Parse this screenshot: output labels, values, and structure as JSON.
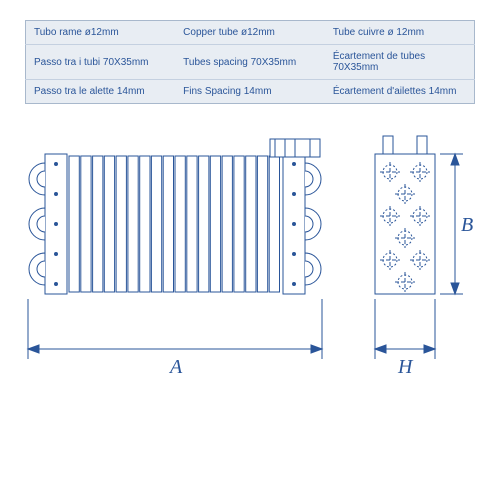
{
  "colors": {
    "table_bg": "#e8edf3",
    "table_border": "#a8b8cc",
    "row_border": "#c4d0e0",
    "text": "#2a5599",
    "drawing_stroke": "#2a5599",
    "drawing_fill": "#ffffff"
  },
  "spec_table": {
    "rows": [
      {
        "it": "Tubo rame ø12mm",
        "en": "Copper tube ø12mm",
        "fr": "Tube cuivre ø 12mm"
      },
      {
        "it": "Passo tra i tubi 70X35mm",
        "en": "Tubes spacing 70X35mm",
        "fr": "Écartement de tubes 70X35mm"
      },
      {
        "it": "Passo tra le alette 14mm",
        "en": "Fins Spacing 14mm",
        "fr": "Écartement d'ailettes 14mm"
      }
    ]
  },
  "dimensions": {
    "A": "A",
    "B": "B",
    "H": "H"
  },
  "drawing": {
    "fin_count": 18,
    "tube_rows": 3,
    "side_tube_count": 6
  }
}
